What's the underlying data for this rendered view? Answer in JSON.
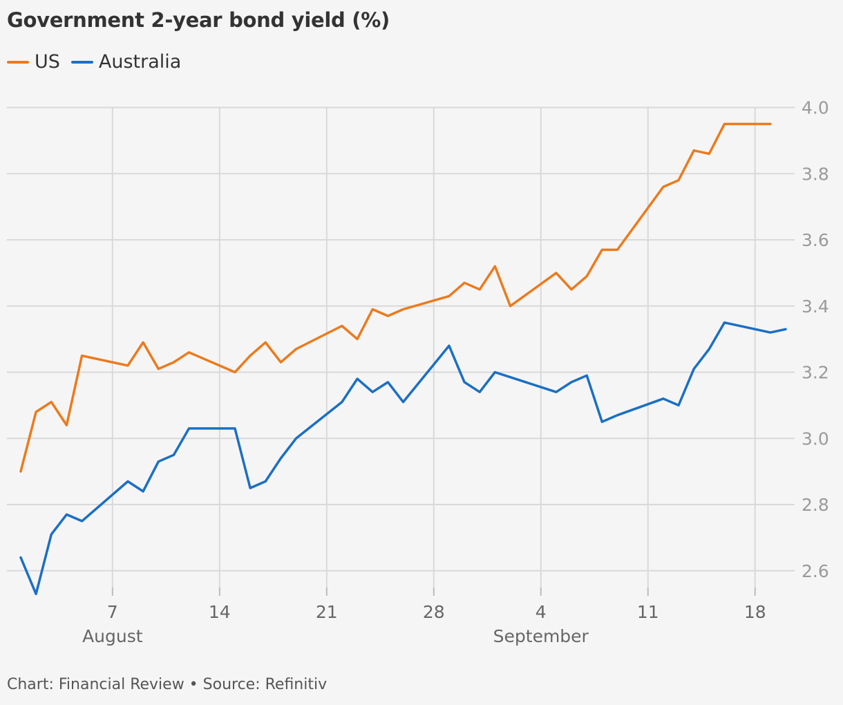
{
  "title": "Government 2-year bond yield (%)",
  "footer": "Chart: Financial Review • Source: Refinitiv",
  "colors": {
    "us": "#ec7a1c",
    "australia": "#1a6fc4",
    "grid": "#d9d9d9"
  },
  "chart_data": {
    "type": "line",
    "title": "Government 2-year bond yield (%)",
    "xlabel": "",
    "ylabel": "",
    "ylim": [
      2.55,
      4.0
    ],
    "y_ticks": [
      "4.0",
      "3.8",
      "3.6",
      "3.4",
      "3.2",
      "3.0",
      "2.8",
      "2.6"
    ],
    "x_ticks": [
      {
        "label": "7",
        "date": "2022-08-07"
      },
      {
        "label": "14",
        "date": "2022-08-14"
      },
      {
        "label": "21",
        "date": "2022-08-21"
      },
      {
        "label": "28",
        "date": "2022-08-28"
      },
      {
        "label": "4",
        "date": "2022-09-04"
      },
      {
        "label": "11",
        "date": "2022-09-11"
      },
      {
        "label": "18",
        "date": "2022-09-18"
      }
    ],
    "month_labels": [
      {
        "label": "August",
        "date": "2022-08-07"
      },
      {
        "label": "September",
        "date": "2022-09-04"
      }
    ],
    "grid": true,
    "legend": "top-left",
    "series": [
      {
        "name": "US",
        "color": "#ec7a1c",
        "points": [
          [
            "2022-08-01",
            2.9
          ],
          [
            "2022-08-02",
            3.08
          ],
          [
            "2022-08-03",
            3.11
          ],
          [
            "2022-08-04",
            3.04
          ],
          [
            "2022-08-05",
            3.25
          ],
          [
            "2022-08-08",
            3.22
          ],
          [
            "2022-08-09",
            3.29
          ],
          [
            "2022-08-10",
            3.21
          ],
          [
            "2022-08-11",
            3.23
          ],
          [
            "2022-08-12",
            3.26
          ],
          [
            "2022-08-15",
            3.2
          ],
          [
            "2022-08-16",
            3.25
          ],
          [
            "2022-08-17",
            3.29
          ],
          [
            "2022-08-18",
            3.23
          ],
          [
            "2022-08-19",
            3.27
          ],
          [
            "2022-08-22",
            3.34
          ],
          [
            "2022-08-23",
            3.3
          ],
          [
            "2022-08-24",
            3.39
          ],
          [
            "2022-08-25",
            3.37
          ],
          [
            "2022-08-26",
            3.39
          ],
          [
            "2022-08-29",
            3.43
          ],
          [
            "2022-08-30",
            3.47
          ],
          [
            "2022-08-31",
            3.45
          ],
          [
            "2022-09-01",
            3.52
          ],
          [
            "2022-09-02",
            3.4
          ],
          [
            "2022-09-05",
            3.5
          ],
          [
            "2022-09-06",
            3.45
          ],
          [
            "2022-09-07",
            3.49
          ],
          [
            "2022-09-08",
            3.57
          ],
          [
            "2022-09-09",
            3.57
          ],
          [
            "2022-09-12",
            3.76
          ],
          [
            "2022-09-13",
            3.78
          ],
          [
            "2022-09-14",
            3.87
          ],
          [
            "2022-09-15",
            3.86
          ],
          [
            "2022-09-16",
            3.95
          ],
          [
            "2022-09-19",
            3.95
          ]
        ]
      },
      {
        "name": "Australia",
        "color": "#1a6fc4",
        "points": [
          [
            "2022-08-01",
            2.64
          ],
          [
            "2022-08-02",
            2.53
          ],
          [
            "2022-08-03",
            2.71
          ],
          [
            "2022-08-04",
            2.77
          ],
          [
            "2022-08-05",
            2.75
          ],
          [
            "2022-08-08",
            2.87
          ],
          [
            "2022-08-09",
            2.84
          ],
          [
            "2022-08-10",
            2.93
          ],
          [
            "2022-08-11",
            2.95
          ],
          [
            "2022-08-12",
            3.03
          ],
          [
            "2022-08-15",
            3.03
          ],
          [
            "2022-08-16",
            2.85
          ],
          [
            "2022-08-17",
            2.87
          ],
          [
            "2022-08-18",
            2.94
          ],
          [
            "2022-08-19",
            3.0
          ],
          [
            "2022-08-22",
            3.11
          ],
          [
            "2022-08-23",
            3.18
          ],
          [
            "2022-08-24",
            3.14
          ],
          [
            "2022-08-25",
            3.17
          ],
          [
            "2022-08-26",
            3.11
          ],
          [
            "2022-08-29",
            3.28
          ],
          [
            "2022-08-30",
            3.17
          ],
          [
            "2022-08-31",
            3.14
          ],
          [
            "2022-09-01",
            3.2
          ],
          [
            "2022-09-05",
            3.14
          ],
          [
            "2022-09-06",
            3.17
          ],
          [
            "2022-09-07",
            3.19
          ],
          [
            "2022-09-08",
            3.05
          ],
          [
            "2022-09-09",
            3.07
          ],
          [
            "2022-09-12",
            3.12
          ],
          [
            "2022-09-13",
            3.1
          ],
          [
            "2022-09-14",
            3.21
          ],
          [
            "2022-09-15",
            3.27
          ],
          [
            "2022-09-16",
            3.35
          ],
          [
            "2022-09-19",
            3.32
          ],
          [
            "2022-09-20",
            3.33
          ]
        ]
      }
    ]
  }
}
